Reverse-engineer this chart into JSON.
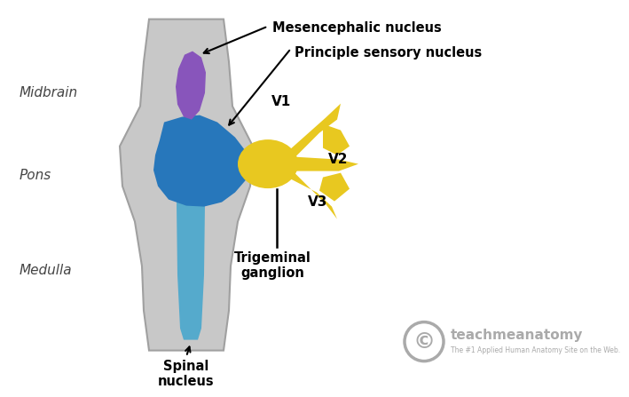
{
  "bg_color": "#ffffff",
  "brainstem_color": "#c8c8c8",
  "brainstem_edge": "#a0a0a0",
  "mesencephalic_color": "#8855bb",
  "pons_nucleus_color": "#2777bb",
  "spinal_tract_color": "#55aacc",
  "ganglion_color": "#e8c820",
  "label_midbrain": "Midbrain",
  "label_pons": "Pons",
  "label_medulla": "Medulla",
  "label_mesencephalic": "Mesencephalic nucleus",
  "label_principle": "Principle sensory nucleus",
  "label_V1": "V1",
  "label_V2": "V2",
  "label_V3": "V3",
  "label_trigeminal": "Trigeminal\nganglion",
  "label_spinal": "Spinal\nnucleus",
  "label_copyright": "teachmeanatomy",
  "label_copyright_sub": "The #1 Applied Human Anatomy Site on the Web.",
  "bold_label_color": "#000000",
  "italic_label_color": "#444444",
  "watermark_color": "#aaaaaa",
  "arrow_color": "#000000"
}
